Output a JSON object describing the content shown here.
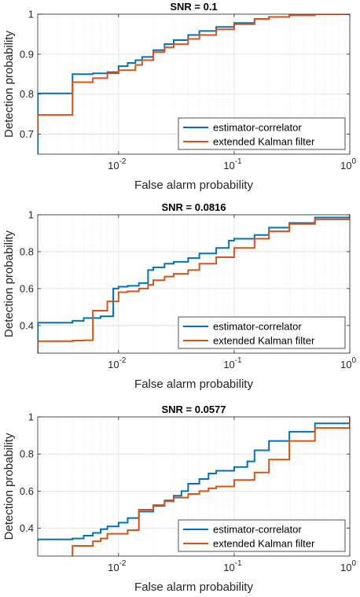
{
  "chart_data": [
    {
      "type": "line",
      "title": "SNR = 0.1",
      "xlabel": "False alarm probability",
      "ylabel": "Detection probability",
      "xscale": "log",
      "xlim": [
        0.002,
        1
      ],
      "ylim": [
        0.65,
        1
      ],
      "xticks": [
        0.01,
        0.1,
        1
      ],
      "xtick_labels": [
        {
          "base": "10",
          "exp": "-2"
        },
        {
          "base": "10",
          "exp": "-1"
        },
        {
          "base": "10",
          "exp": "0"
        }
      ],
      "yticks": [
        0.7,
        0.8,
        0.9,
        1
      ],
      "ytick_labels": [
        "0.7",
        "0.8",
        "0.9",
        "1"
      ],
      "grid": true,
      "legend": "bottom-right",
      "colors": {
        "estimator-correlator": "#0072BD",
        "extended Kalman filter": "#D95319"
      },
      "series": [
        {
          "name": "estimator-correlator",
          "x": [
            0.002,
            0.002,
            0.004,
            0.004,
            0.006,
            0.008,
            0.01,
            0.012,
            0.014,
            0.016,
            0.02,
            0.025,
            0.03,
            0.04,
            0.05,
            0.07,
            0.1,
            0.15,
            0.2,
            0.3,
            0.5,
            1
          ],
          "y": [
            0.65,
            0.802,
            0.805,
            0.85,
            0.852,
            0.855,
            0.87,
            0.878,
            0.885,
            0.893,
            0.91,
            0.925,
            0.935,
            0.948,
            0.958,
            0.968,
            0.978,
            0.988,
            0.993,
            0.997,
            1.0,
            1.0
          ]
        },
        {
          "name": "extended Kalman filter",
          "x": [
            0.002,
            0.002,
            0.004,
            0.004,
            0.006,
            0.006,
            0.008,
            0.01,
            0.014,
            0.016,
            0.02,
            0.025,
            0.03,
            0.04,
            0.05,
            0.07,
            0.1,
            0.15,
            0.2,
            0.3,
            0.5,
            1
          ],
          "y": [
            0.7,
            0.748,
            0.748,
            0.83,
            0.83,
            0.84,
            0.852,
            0.86,
            0.873,
            0.885,
            0.905,
            0.917,
            0.925,
            0.938,
            0.948,
            0.962,
            0.975,
            0.988,
            0.993,
            0.997,
            1.0,
            1.0
          ]
        }
      ]
    },
    {
      "type": "line",
      "title": "SNR = 0.0816",
      "xlabel": "False alarm probability",
      "ylabel": "Detection probability",
      "xscale": "log",
      "xlim": [
        0.002,
        1
      ],
      "ylim": [
        0.25,
        1
      ],
      "xticks": [
        0.01,
        0.1,
        1
      ],
      "xtick_labels": [
        {
          "base": "10",
          "exp": "-2"
        },
        {
          "base": "10",
          "exp": "-1"
        },
        {
          "base": "10",
          "exp": "0"
        }
      ],
      "yticks": [
        0.4,
        0.6,
        0.8,
        1
      ],
      "ytick_labels": [
        "0.4",
        "0.6",
        "0.8",
        "1"
      ],
      "grid": true,
      "legend": "bottom-right",
      "colors": {
        "estimator-correlator": "#0072BD",
        "extended Kalman filter": "#D95319"
      },
      "series": [
        {
          "name": "estimator-correlator",
          "x": [
            0.002,
            0.002,
            0.004,
            0.005,
            0.007,
            0.009,
            0.009,
            0.01,
            0.012,
            0.015,
            0.018,
            0.018,
            0.02,
            0.025,
            0.03,
            0.04,
            0.05,
            0.07,
            0.09,
            0.1,
            0.15,
            0.2,
            0.3,
            0.5,
            1
          ],
          "y": [
            0.25,
            0.415,
            0.425,
            0.44,
            0.45,
            0.48,
            0.6,
            0.61,
            0.615,
            0.63,
            0.64,
            0.7,
            0.715,
            0.735,
            0.745,
            0.765,
            0.79,
            0.82,
            0.86,
            0.87,
            0.89,
            0.93,
            0.955,
            0.985,
            1.0
          ]
        },
        {
          "name": "extended Kalman filter",
          "x": [
            0.002,
            0.002,
            0.004,
            0.005,
            0.005,
            0.006,
            0.006,
            0.008,
            0.01,
            0.01,
            0.012,
            0.015,
            0.018,
            0.02,
            0.025,
            0.03,
            0.04,
            0.05,
            0.07,
            0.1,
            0.15,
            0.2,
            0.3,
            0.5,
            1
          ],
          "y": [
            0.27,
            0.315,
            0.318,
            0.32,
            0.32,
            0.33,
            0.48,
            0.53,
            0.55,
            0.58,
            0.585,
            0.6,
            0.62,
            0.645,
            0.665,
            0.68,
            0.7,
            0.735,
            0.77,
            0.82,
            0.87,
            0.91,
            0.95,
            0.975,
            1.0
          ]
        }
      ]
    },
    {
      "type": "line",
      "title": "SNR = 0.0577",
      "xlabel": "False alarm probability",
      "ylabel": "Detection probability",
      "xscale": "log",
      "xlim": [
        0.002,
        1
      ],
      "ylim": [
        0.25,
        1
      ],
      "xticks": [
        0.01,
        0.1,
        1
      ],
      "xtick_labels": [
        {
          "base": "10",
          "exp": "-2"
        },
        {
          "base": "10",
          "exp": "-1"
        },
        {
          "base": "10",
          "exp": "0"
        }
      ],
      "yticks": [
        0.4,
        0.6,
        0.8,
        1
      ],
      "ytick_labels": [
        "0.4",
        "0.6",
        "0.8",
        "1"
      ],
      "grid": true,
      "legend": "bottom-right",
      "colors": {
        "estimator-correlator": "#0072BD",
        "extended Kalman filter": "#D95319"
      },
      "series": [
        {
          "name": "estimator-correlator",
          "x": [
            0.002,
            0.002,
            0.004,
            0.005,
            0.006,
            0.007,
            0.008,
            0.01,
            0.012,
            0.015,
            0.02,
            0.025,
            0.03,
            0.035,
            0.04,
            0.05,
            0.06,
            0.07,
            0.1,
            0.13,
            0.15,
            0.2,
            0.3,
            0.5,
            1
          ],
          "y": [
            0.33,
            0.34,
            0.345,
            0.36,
            0.375,
            0.395,
            0.41,
            0.43,
            0.455,
            0.49,
            0.52,
            0.55,
            0.575,
            0.6,
            0.64,
            0.665,
            0.695,
            0.71,
            0.73,
            0.76,
            0.82,
            0.87,
            0.92,
            0.965,
            1.0
          ]
        },
        {
          "name": "extended Kalman filter",
          "x": [
            0.002,
            0.002,
            0.004,
            0.004,
            0.006,
            0.007,
            0.008,
            0.008,
            0.012,
            0.015,
            0.015,
            0.02,
            0.025,
            0.03,
            0.04,
            0.05,
            0.06,
            0.07,
            0.1,
            0.15,
            0.2,
            0.3,
            0.5,
            1
          ],
          "y": [
            0.23,
            0.24,
            0.245,
            0.305,
            0.33,
            0.345,
            0.35,
            0.37,
            0.39,
            0.41,
            0.5,
            0.525,
            0.545,
            0.565,
            0.585,
            0.6,
            0.615,
            0.625,
            0.66,
            0.7,
            0.77,
            0.87,
            0.94,
            1.0
          ]
        }
      ]
    }
  ]
}
